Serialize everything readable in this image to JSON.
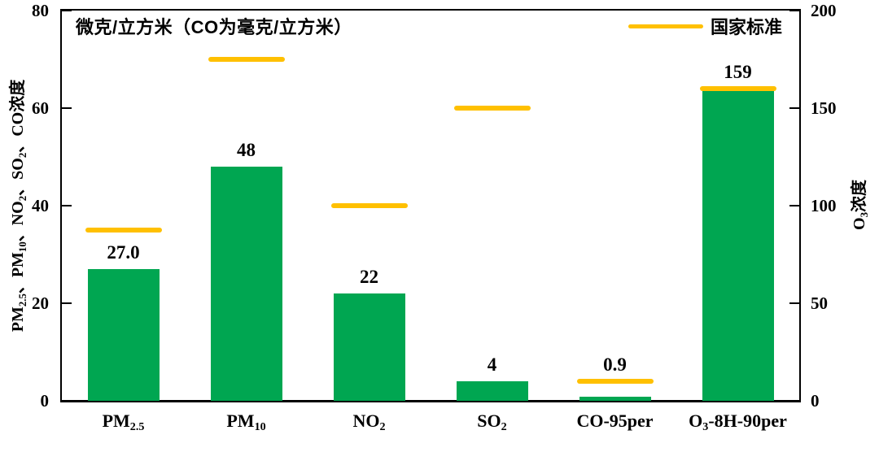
{
  "chart": {
    "colors": {
      "bar": "#00A651",
      "standard_line": "#FFC000",
      "axis": "#000000",
      "text": "#000000"
    }
  },
  "chart_data": {
    "type": "bar",
    "title": "",
    "unit_note": "微克/立方米（CO为毫克/立方米）",
    "legend": {
      "label": "国家标准",
      "position": "top-right"
    },
    "grid": false,
    "categories": [
      "PM2.5",
      "PM10",
      "NO2",
      "SO2",
      "CO-95per",
      "O3-8H-90per"
    ],
    "category_segments": [
      [
        {
          "t": "PM"
        },
        {
          "t": "2.5",
          "sub": true
        }
      ],
      [
        {
          "t": "PM"
        },
        {
          "t": "10",
          "sub": true
        }
      ],
      [
        {
          "t": "NO"
        },
        {
          "t": "2",
          "sub": true
        }
      ],
      [
        {
          "t": "SO"
        },
        {
          "t": "2",
          "sub": true
        }
      ],
      [
        {
          "t": "CO-95per"
        }
      ],
      [
        {
          "t": "O"
        },
        {
          "t": "3",
          "sub": true
        },
        {
          "t": "-8H-90per"
        }
      ]
    ],
    "series": [
      {
        "name": "浓度",
        "type": "bar",
        "color": "#00A651",
        "values": [
          27.0,
          48,
          22,
          4,
          0.9,
          159
        ],
        "value_labels": [
          "27.0",
          "48",
          "22",
          "4",
          "0.9",
          "159"
        ],
        "value_axis": [
          "left",
          "left",
          "left",
          "left",
          "left",
          "right"
        ]
      },
      {
        "name": "国家标准",
        "type": "reference-line",
        "color": "#FFC000",
        "values": [
          35,
          70,
          40,
          60,
          4,
          160
        ],
        "value_axis": [
          "left",
          "left",
          "left",
          "left",
          "left",
          "right"
        ]
      }
    ],
    "left_axis": {
      "label": "PM2.5、PM10、NO2、SO2、CO浓度",
      "label_segments": [
        {
          "t": "PM"
        },
        {
          "t": "2.5",
          "sub": true
        },
        {
          "t": "、PM"
        },
        {
          "t": "10",
          "sub": true
        },
        {
          "t": "、NO"
        },
        {
          "t": "2",
          "sub": true
        },
        {
          "t": "、SO"
        },
        {
          "t": "2",
          "sub": true
        },
        {
          "t": "、CO浓度"
        }
      ],
      "range": [
        0,
        80
      ],
      "ticks": [
        0,
        20,
        40,
        60,
        80
      ]
    },
    "right_axis": {
      "label": "O3浓度",
      "label_segments": [
        {
          "t": "O"
        },
        {
          "t": "3",
          "sub": true
        },
        {
          "t": "浓度"
        }
      ],
      "range": [
        0,
        200
      ],
      "ticks": [
        0,
        50,
        100,
        150,
        200
      ]
    }
  }
}
